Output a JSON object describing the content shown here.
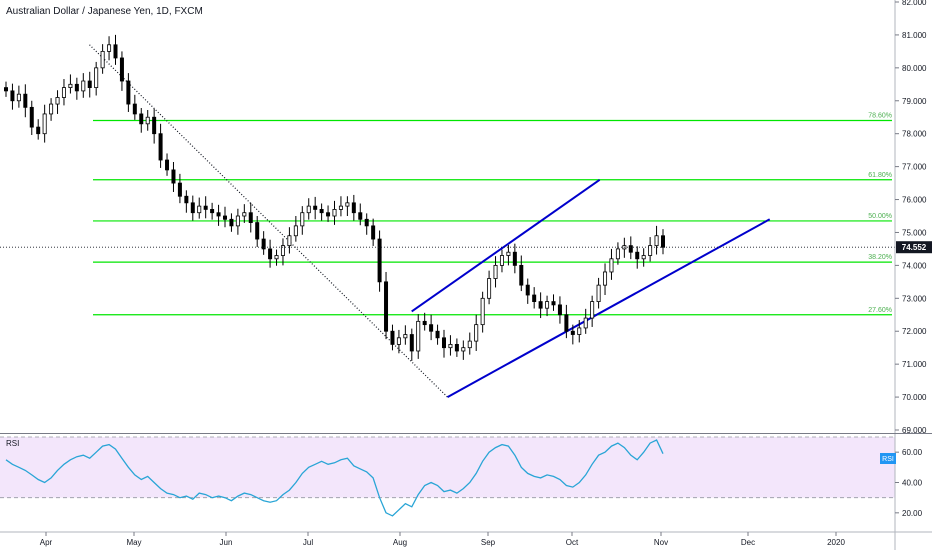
{
  "header": {
    "title": "Australian Dollar / Japanese Yen, 1D, FXCM"
  },
  "price_tag": {
    "value": "74.552",
    "color": "#131722"
  },
  "rsi_panel": {
    "label": "RSI",
    "tag_value": "RSI",
    "tag_color": "#2196f3"
  },
  "colors": {
    "up_candle": "#ffffff",
    "down_candle": "#000000",
    "fib_line": "#00e600",
    "fib_text": "#4caf50",
    "channel": "#0000cc",
    "rsi_line": "#29a5d6",
    "rsi_band": "#f3e6fb",
    "grid": "#e0e3eb"
  },
  "chart_data": [
    {
      "type": "candlestick",
      "title": "Australian Dollar / Japanese Yen, 1D, FXCM",
      "ylim": [
        69.0,
        82.0
      ],
      "y_ticks": [
        "82.000",
        "81.000",
        "80.000",
        "79.000",
        "78.000",
        "77.000",
        "76.000",
        "75.000",
        "74.000",
        "73.000",
        "72.000",
        "71.000",
        "70.000",
        "69.000"
      ],
      "x_ticks": [
        "Apr",
        "May",
        "Jun",
        "Jul",
        "Aug",
        "Sep",
        "Oct",
        "Nov",
        "Dec",
        "2020"
      ],
      "last_price": 74.552,
      "fib_levels": [
        {
          "label": "78.60%",
          "value": 78.4
        },
        {
          "label": "61.80%",
          "value": 76.6
        },
        {
          "label": "50.00%",
          "value": 75.35
        },
        {
          "label": "38.20%",
          "value": 74.1
        },
        {
          "label": "27.60%",
          "value": 72.5
        }
      ],
      "trendlines": [
        {
          "style": "dotted",
          "from": [
            0.1,
            80.7
          ],
          "to": [
            0.5,
            70.0
          ]
        },
        {
          "style": "channel-upper",
          "from": [
            0.46,
            72.6
          ],
          "to": [
            0.67,
            76.6
          ]
        },
        {
          "style": "channel-lower",
          "from": [
            0.5,
            70.0
          ],
          "to": [
            0.86,
            75.4
          ]
        }
      ],
      "closes": [
        79.3,
        79.0,
        79.2,
        78.8,
        78.2,
        78.0,
        78.6,
        78.9,
        79.1,
        79.4,
        79.5,
        79.3,
        79.6,
        79.4,
        80.0,
        80.5,
        80.7,
        80.3,
        79.6,
        78.9,
        78.6,
        78.3,
        78.5,
        78.0,
        77.2,
        76.9,
        76.5,
        76.1,
        75.9,
        75.6,
        75.8,
        75.7,
        75.6,
        75.5,
        75.4,
        75.2,
        75.5,
        75.6,
        75.3,
        74.8,
        74.5,
        74.2,
        74.3,
        74.6,
        74.9,
        75.2,
        75.6,
        75.8,
        75.7,
        75.6,
        75.5,
        75.7,
        75.8,
        75.9,
        75.6,
        75.4,
        75.2,
        74.8,
        73.5,
        72.0,
        71.6,
        71.8,
        71.9,
        71.4,
        72.3,
        72.2,
        72.0,
        71.8,
        71.5,
        71.6,
        71.4,
        71.5,
        71.7,
        72.2,
        73.0,
        73.6,
        74.0,
        74.3,
        74.4,
        74.0,
        73.4,
        73.1,
        72.9,
        72.7,
        72.9,
        72.8,
        72.5,
        72.0,
        71.9,
        72.1,
        72.4,
        72.9,
        73.4,
        73.8,
        74.2,
        74.5,
        74.6,
        74.4,
        74.2,
        74.3,
        74.6,
        74.9,
        74.55
      ],
      "rsi": {
        "ylim": [
          10,
          70
        ],
        "y_ticks": [
          "60.00",
          "40.00",
          "20.00"
        ],
        "band": [
          30,
          70
        ],
        "values": [
          55,
          52,
          50,
          48,
          45,
          42,
          40,
          43,
          48,
          52,
          55,
          57,
          58,
          56,
          60,
          64,
          65,
          62,
          56,
          50,
          45,
          42,
          44,
          40,
          36,
          33,
          32,
          30,
          31,
          29,
          33,
          32,
          30,
          31,
          30,
          28,
          31,
          33,
          32,
          30,
          28,
          27,
          28,
          32,
          35,
          40,
          46,
          50,
          52,
          54,
          52,
          53,
          55,
          56,
          51,
          49,
          47,
          43,
          30,
          20,
          18,
          22,
          26,
          24,
          32,
          38,
          40,
          38,
          34,
          35,
          33,
          36,
          40,
          46,
          54,
          60,
          63,
          65,
          64,
          58,
          50,
          46,
          44,
          43,
          45,
          44,
          42,
          38,
          37,
          40,
          45,
          52,
          58,
          60,
          64,
          66,
          63,
          58,
          55,
          60,
          66,
          68,
          59
        ]
      }
    }
  ]
}
